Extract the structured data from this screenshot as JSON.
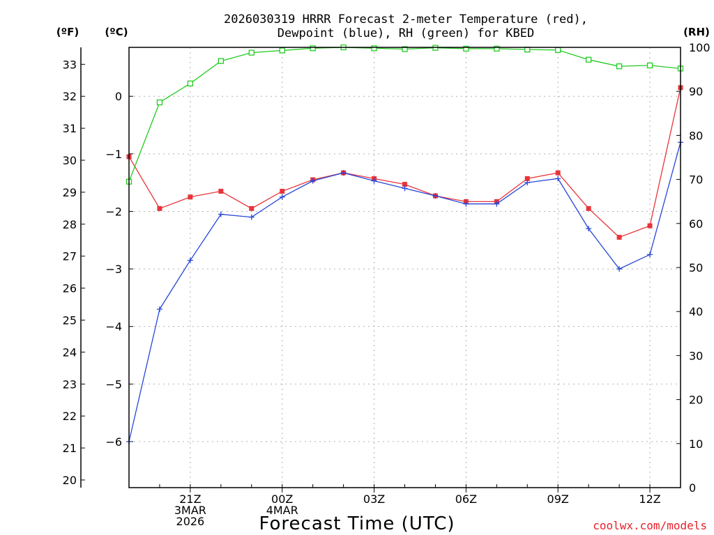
{
  "title_line1": "2026030319 HRRR Forecast 2-meter Temperature (red),",
  "title_line2": "Dewpoint (blue), RH (green) for KBED",
  "unit_f": "(ºF)",
  "unit_c": "(ºC)",
  "unit_rh": "(RH)",
  "credit": "coolwx.com/models",
  "colors": {
    "temp": "#e8343a",
    "dewpoint": "#2746d8",
    "rh": "#22cc22",
    "credit": "#e8202a"
  },
  "chart_data": {
    "type": "line",
    "title": "2026030319 HRRR Forecast 2-meter Temperature (red), Dewpoint (blue), RH (green) for KBED",
    "xlabel": "Forecast Time (UTC)",
    "x": [
      "19Z",
      "20Z",
      "21Z",
      "22Z",
      "23Z",
      "00Z",
      "01Z",
      "02Z",
      "03Z",
      "04Z",
      "05Z",
      "06Z",
      "07Z",
      "08Z",
      "09Z",
      "10Z",
      "11Z",
      "12Z",
      "13Z"
    ],
    "x_tick_labels": [
      {
        "index": 2,
        "lines": [
          "21Z",
          "3MAR",
          "2026"
        ]
      },
      {
        "index": 5,
        "lines": [
          "00Z",
          "4MAR"
        ]
      },
      {
        "index": 8,
        "lines": [
          "03Z"
        ]
      },
      {
        "index": 11,
        "lines": [
          "06Z"
        ]
      },
      {
        "index": 14,
        "lines": [
          "09Z"
        ]
      },
      {
        "index": 17,
        "lines": [
          "12Z"
        ]
      }
    ],
    "y_celsius": {
      "range": [
        -6.8,
        0.85
      ],
      "ticks": [
        0,
        -1,
        -2,
        -3,
        -4,
        -5,
        -6
      ],
      "tick_labels": [
        "0",
        "−1",
        "−2",
        "−3",
        "−4",
        "−5",
        "−6"
      ]
    },
    "y_fahrenheit": {
      "ticks": [
        33,
        32,
        31,
        30,
        29,
        28,
        27,
        26,
        25,
        24,
        23,
        22,
        21,
        20
      ]
    },
    "y_rh": {
      "range": [
        0,
        100
      ],
      "ticks": [
        0,
        10,
        20,
        30,
        40,
        50,
        60,
        70,
        80,
        90,
        100
      ]
    },
    "series": [
      {
        "name": "Temperature",
        "units": "C",
        "color": "red",
        "marker": "filled-square",
        "values": [
          -1.05,
          -1.95,
          -1.75,
          -1.65,
          -1.95,
          -1.65,
          -1.45,
          -1.33,
          -1.43,
          -1.53,
          -1.73,
          -1.83,
          -1.83,
          -1.43,
          -1.33,
          -1.95,
          -2.45,
          -2.25,
          0.15
        ]
      },
      {
        "name": "Dewpoint",
        "units": "C",
        "color": "blue",
        "marker": "plus",
        "values": [
          -6.0,
          -3.7,
          -2.85,
          -2.05,
          -2.1,
          -1.75,
          -1.47,
          -1.33,
          -1.47,
          -1.6,
          -1.73,
          -1.87,
          -1.87,
          -1.5,
          -1.43,
          -2.3,
          -3.0,
          -2.75,
          -0.8
        ]
      },
      {
        "name": "RH",
        "units": "%",
        "color": "green",
        "marker": "open-square",
        "values": [
          69.5,
          87.5,
          91.8,
          96.9,
          98.8,
          99.3,
          99.8,
          100,
          99.8,
          99.6,
          99.9,
          99.7,
          99.7,
          99.5,
          99.4,
          97.2,
          95.7,
          95.9,
          95.2
        ]
      }
    ]
  }
}
